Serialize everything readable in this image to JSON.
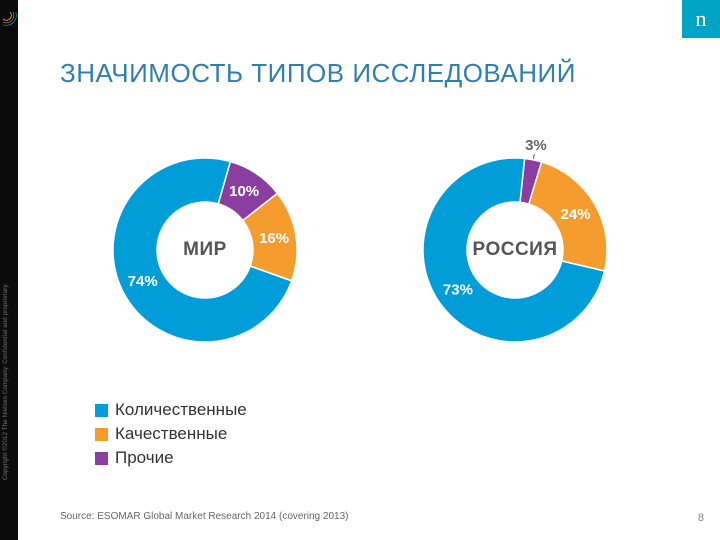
{
  "brand": {
    "letter": "n",
    "badge_bg": "#00a5c6"
  },
  "copyright": "Copyright ©2012 The Nielsen Company. Confidential and proprietary.",
  "title": "ЗНАЧИМОСТЬ ТИПОВ ИССЛЕДОВАНИЙ",
  "title_color": "#2f7fb0",
  "title_fontsize": 26,
  "source": "Source: ESOMAR Global Market Research 2014 (covering 2013)",
  "page_number": "8",
  "palette": {
    "quantitative": "#009dd8",
    "qualitative": "#f59c2e",
    "other": "#8a3fa0",
    "slice_stroke": "#ffffff"
  },
  "legend": {
    "items": [
      {
        "label": "Количественные",
        "color_key": "quantitative"
      },
      {
        "label": "Качественные",
        "color_key": "qualitative"
      },
      {
        "label": "Прочие",
        "color_key": "other"
      }
    ]
  },
  "charts": [
    {
      "center_label": "МИР",
      "order": [
        "other",
        "qualitative",
        "quantitative"
      ],
      "slices": {
        "quantitative": {
          "value": 74,
          "label": "74%",
          "label_pos": "inside"
        },
        "qualitative": {
          "value": 16,
          "label": "16%",
          "label_pos": "inside"
        },
        "other": {
          "value": 10,
          "label": "10%",
          "label_pos": "inside"
        }
      },
      "start_angle_deg": 16,
      "inner_r": 48,
      "outer_r": 92
    },
    {
      "center_label": "РОССИЯ",
      "order": [
        "other",
        "qualitative",
        "quantitative"
      ],
      "slices": {
        "quantitative": {
          "value": 73,
          "label": "73%",
          "label_pos": "inside"
        },
        "qualitative": {
          "value": 24,
          "label": "24%",
          "label_pos": "inside"
        },
        "other": {
          "value": 3,
          "label": "3%",
          "label_pos": "outside"
        }
      },
      "start_angle_deg": 6,
      "inner_r": 48,
      "outer_r": 92
    }
  ]
}
